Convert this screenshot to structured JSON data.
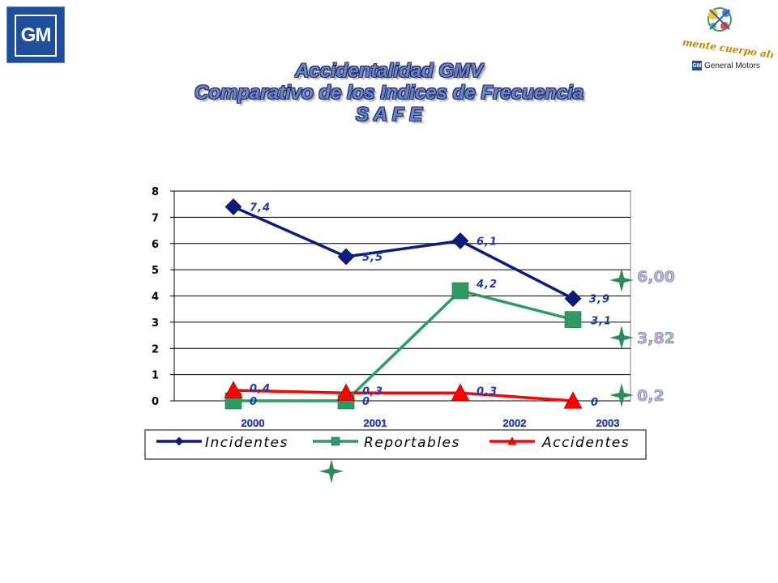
{
  "logo": {
    "text": "GM"
  },
  "brand": {
    "slogan": "mente cuerpo alma",
    "company": "General Motors",
    "badge": "GM"
  },
  "title": {
    "line1": "Accidentalidad GMV",
    "line2": "Comparativo de los Indices de Frecuencia",
    "line3": "S A F E"
  },
  "chart_data": {
    "type": "line",
    "categories": [
      "2000",
      "2001",
      "2002",
      "2003"
    ],
    "ylim": [
      0,
      8
    ],
    "yticks": [
      0,
      1,
      2,
      3,
      4,
      5,
      6,
      7,
      8
    ],
    "grid": true,
    "legend_position": "bottom",
    "series": [
      {
        "name": "Incidentes",
        "values": [
          7.4,
          5.5,
          6.1,
          3.9
        ],
        "labels": [
          "7,4",
          "5,5",
          "6,1",
          "3,9"
        ],
        "color": "#0c1b7f",
        "marker": "diamond"
      },
      {
        "name": "Reportables",
        "values": [
          0,
          0,
          4.2,
          3.1
        ],
        "labels": [
          "0",
          "0",
          "4,2",
          "3,1"
        ],
        "color": "#2f9a64",
        "marker": "square"
      },
      {
        "name": "Accidentes",
        "values": [
          0.4,
          0.3,
          0.3,
          0
        ],
        "labels": [
          "0,4",
          "0,3",
          "0,3",
          "0"
        ],
        "color": "#ff0000",
        "marker": "triangle"
      }
    ],
    "targets": [
      {
        "label": "6,00",
        "value": 6.0
      },
      {
        "label": "3,82",
        "value": 3.82
      },
      {
        "label": "0,2",
        "value": 0.2
      }
    ]
  },
  "colors": {
    "accent_green": "#2e8b57",
    "title_fill": "#6a82c7",
    "axis_label_blue": "#1e3aa8"
  },
  "icons": {
    "star": "four-point-star-icon",
    "brand": "molecule-logo-icon"
  }
}
